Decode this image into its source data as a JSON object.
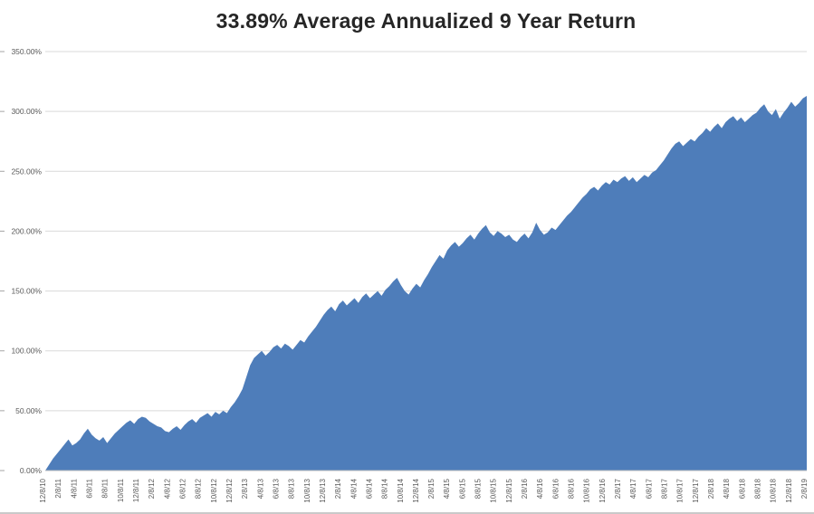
{
  "chart_data": {
    "type": "area",
    "title": "33.89% Average Annualized 9 Year Return",
    "xlabel": "",
    "ylabel": "",
    "ylim": [
      0,
      350
    ],
    "grid": true,
    "legend": "none",
    "y_ticks": [
      "0.00%",
      "50.00%",
      "100.00%",
      "150.00%",
      "200.00%",
      "250.00%",
      "300.00%",
      "350.00%"
    ],
    "x_tick_labels": [
      "12/8/10",
      "2/8/11",
      "4/8/11",
      "6/8/11",
      "8/8/11",
      "10/8/11",
      "12/8/11",
      "2/8/12",
      "4/8/12",
      "6/8/12",
      "8/8/12",
      "10/8/12",
      "12/8/12",
      "2/8/13",
      "4/8/13",
      "6/8/13",
      "8/8/13",
      "10/8/13",
      "12/8/13",
      "2/8/14",
      "4/8/14",
      "6/8/14",
      "8/8/14",
      "10/8/14",
      "12/8/14",
      "2/8/15",
      "4/8/15",
      "6/8/15",
      "8/8/15",
      "10/8/15",
      "12/8/15",
      "2/8/16",
      "4/8/16",
      "6/8/16",
      "8/8/16",
      "10/8/16",
      "12/8/16",
      "2/8/17",
      "4/8/17",
      "6/8/17",
      "8/8/17",
      "10/8/17",
      "12/8/17",
      "2/8/18",
      "4/8/18",
      "6/8/18",
      "8/8/18",
      "10/8/18",
      "12/8/18",
      "2/8/19"
    ],
    "x_start": "12/8/10",
    "x_end": "2/8/19",
    "values_unit": "percent_cumulative_return",
    "values": [
      0,
      5,
      10,
      14,
      18,
      22,
      26,
      21,
      23,
      26,
      31,
      35,
      30,
      27,
      25,
      28,
      23,
      27,
      31,
      34,
      37,
      40,
      42,
      39,
      43,
      45,
      44,
      41,
      39,
      37,
      36,
      33,
      32,
      35,
      37,
      34,
      38,
      41,
      43,
      40,
      44,
      46,
      48,
      45,
      49,
      47,
      50,
      48,
      53,
      57,
      62,
      68,
      78,
      88,
      94,
      97,
      100,
      96,
      99,
      103,
      105,
      102,
      106,
      104,
      101,
      105,
      109,
      107,
      112,
      116,
      120,
      125,
      130,
      134,
      137,
      133,
      139,
      142,
      138,
      141,
      144,
      140,
      145,
      148,
      144,
      147,
      150,
      146,
      151,
      154,
      158,
      161,
      155,
      150,
      147,
      152,
      156,
      153,
      159,
      164,
      170,
      175,
      180,
      177,
      184,
      188,
      191,
      187,
      190,
      194,
      197,
      193,
      198,
      202,
      205,
      199,
      196,
      200,
      198,
      195,
      197,
      193,
      191,
      195,
      198,
      194,
      199,
      207,
      201,
      197,
      199,
      203,
      201,
      205,
      209,
      213,
      216,
      220,
      224,
      228,
      231,
      235,
      237,
      234,
      238,
      241,
      239,
      243,
      241,
      244,
      246,
      242,
      245,
      241,
      244,
      247,
      245,
      249,
      251,
      255,
      259,
      264,
      269,
      273,
      275,
      271,
      274,
      277,
      275,
      279,
      282,
      286,
      283,
      287,
      290,
      286,
      291,
      294,
      296,
      292,
      295,
      291,
      294,
      297,
      299,
      303,
      306,
      300,
      297,
      302,
      294,
      299,
      303,
      308,
      304,
      307,
      311,
      313
    ],
    "colors": {
      "area": "#4e7dba",
      "gridline": "#d9d9d9",
      "tick_label": "#595959",
      "axis_line": "#bfbfbf",
      "edge_tick": "#a6a6a6",
      "title": "#262626"
    }
  }
}
